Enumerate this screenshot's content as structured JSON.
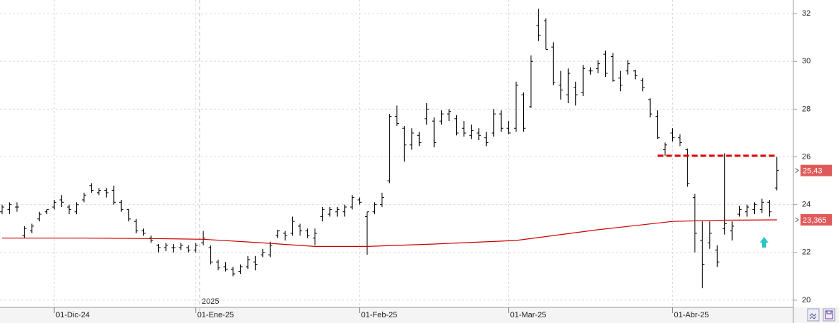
{
  "chart_data": {
    "type": "ohlc",
    "categories": [
      null,
      null,
      null,
      null,
      null,
      null,
      null,
      "01-Dic-24",
      null,
      null,
      null,
      null,
      null,
      null,
      null,
      null,
      null,
      null,
      null,
      null,
      null,
      null,
      null,
      null,
      null,
      null,
      "01-Ene-25",
      null,
      null,
      null,
      null,
      null,
      null,
      null,
      null,
      null,
      null,
      null,
      null,
      null,
      null,
      null,
      null,
      null,
      null,
      null,
      null,
      null,
      "01-Feb-25",
      null,
      null,
      null,
      null,
      null,
      null,
      null,
      null,
      null,
      null,
      null,
      null,
      null,
      null,
      null,
      null,
      null,
      null,
      null,
      "01-Mar-25",
      null,
      null,
      null,
      null,
      null,
      null,
      null,
      null,
      null,
      null,
      null,
      null,
      null,
      null,
      null,
      null,
      null,
      null,
      null,
      null,
      null,
      "01-Abr-25",
      null,
      null,
      null,
      null,
      null,
      null,
      null,
      null,
      null,
      null,
      null,
      null,
      null,
      null
    ],
    "year_label": "2025",
    "color": "#000000",
    "open": [
      23.7,
      23.8,
      23.9,
      22.7,
      22.9,
      23.4,
      23.7,
      23.9,
      24.2,
      23.9,
      23.7,
      24.2,
      24.8,
      24.5,
      24.6,
      24.6,
      24.1,
      23.8,
      23.3,
      22.9,
      22.6,
      22.3,
      22.2,
      22.2,
      22.2,
      22.2,
      22.1,
      22.4,
      22.2,
      21.6,
      21.4,
      21.3,
      21.2,
      21.4,
      21.6,
      21.9,
      21.9,
      22.7,
      22.8,
      22.8,
      23.1,
      22.9,
      22.6,
      23.5,
      23.6,
      23.7,
      23.7,
      23.9,
      24.2,
      23.5,
      23.7,
      24.0,
      25.0,
      27.7,
      27.2,
      26.5,
      26.9,
      27.6,
      27.5,
      27.5,
      27.8,
      27.6,
      27.2,
      26.9,
      27.0,
      26.8,
      27.0,
      27.8,
      27.2,
      27.2,
      28.6,
      28.1,
      31.5,
      31.7,
      30.6,
      29.0,
      28.6,
      28.9,
      28.7,
      29.6,
      29.7,
      30.3,
      30.2,
      29.3,
      29.6,
      29.6,
      29.2,
      28.4,
      27.7,
      26.3,
      27.0,
      26.8,
      26.3,
      24.3,
      22.5,
      22.4,
      22.1,
      23.0,
      22.9,
      23.6,
      23.7,
      23.8,
      23.8,
      24.1,
      24.7
    ],
    "high": [
      24.0,
      24.1,
      24.1,
      23.1,
      23.2,
      23.7,
      23.8,
      24.2,
      24.4,
      24.0,
      24.1,
      24.5,
      24.9,
      24.7,
      24.7,
      24.8,
      24.2,
      23.8,
      23.4,
      23.0,
      22.7,
      22.35,
      22.4,
      22.35,
      22.4,
      22.3,
      22.4,
      22.9,
      22.3,
      21.7,
      21.6,
      21.4,
      21.5,
      21.85,
      21.85,
      22.15,
      22.45,
      22.95,
      22.9,
      23.5,
      23.2,
      23.0,
      23.0,
      23.9,
      23.9,
      23.9,
      24.0,
      24.4,
      24.3,
      23.7,
      24.1,
      24.5,
      27.8,
      28.15,
      27.3,
      27.2,
      27.05,
      28.25,
      27.65,
      27.95,
      28.0,
      27.75,
      27.5,
      27.35,
      27.2,
      27.05,
      28.0,
      27.95,
      27.5,
      29.15,
      28.7,
      30.25,
      32.2,
      31.8,
      30.8,
      29.6,
      29.7,
      29.15,
      29.85,
      29.75,
      30.05,
      30.45,
      30.35,
      29.6,
      30.05,
      29.65,
      29.3,
      28.45,
      27.95,
      26.6,
      27.2,
      26.95,
      26.35,
      24.45,
      23.3,
      23.3,
      22.3,
      26.15,
      23.3,
      23.95,
      24.0,
      24.1,
      24.25,
      24.2,
      26.0
    ],
    "low": [
      23.6,
      23.6,
      23.7,
      22.6,
      22.8,
      23.3,
      23.6,
      23.8,
      23.9,
      23.6,
      23.6,
      24.1,
      24.5,
      24.4,
      24.3,
      24.0,
      23.7,
      23.3,
      22.8,
      22.7,
      22.4,
      22.0,
      22.05,
      22.0,
      22.1,
      22.0,
      22.0,
      22.3,
      21.5,
      21.25,
      21.2,
      21.0,
      21.1,
      21.3,
      21.25,
      21.8,
      21.8,
      22.6,
      22.5,
      22.7,
      22.7,
      22.6,
      22.3,
      23.3,
      23.5,
      23.5,
      23.5,
      23.8,
      24.0,
      21.9,
      23.6,
      23.9,
      24.9,
      27.3,
      25.8,
      26.3,
      26.45,
      27.35,
      26.4,
      27.35,
      27.5,
      26.9,
      26.85,
      26.75,
      26.7,
      26.45,
      26.85,
      27.05,
      26.95,
      27.05,
      27.05,
      28.05,
      30.85,
      30.5,
      29.0,
      28.4,
      28.25,
      28.15,
      28.55,
      29.45,
      29.5,
      29.35,
      29.15,
      28.75,
      29.45,
      29.25,
      28.75,
      27.65,
      26.75,
      26.05,
      26.65,
      26.45,
      24.75,
      22.0,
      20.5,
      22.15,
      21.4,
      22.75,
      22.5,
      23.5,
      23.5,
      23.6,
      23.65,
      23.5,
      24.6
    ],
    "close": [
      23.9,
      24.0,
      23.9,
      23.0,
      23.1,
      23.6,
      23.8,
      24.1,
      24.1,
      23.8,
      24.0,
      24.4,
      24.6,
      24.6,
      24.5,
      24.1,
      23.8,
      23.4,
      22.9,
      22.8,
      22.5,
      22.2,
      22.3,
      22.2,
      22.3,
      22.1,
      22.3,
      22.6,
      21.6,
      21.35,
      21.3,
      21.1,
      21.4,
      21.7,
      21.5,
      22.0,
      22.3,
      22.9,
      22.7,
      23.3,
      22.9,
      22.7,
      22.8,
      23.8,
      23.8,
      23.8,
      23.9,
      24.3,
      24.1,
      23.7,
      24.0,
      24.3,
      27.7,
      27.4,
      26.5,
      27.0,
      26.6,
      28.0,
      26.6,
      27.8,
      27.9,
      27.0,
      27.0,
      27.1,
      26.9,
      26.6,
      27.8,
      27.2,
      27.0,
      29.0,
      27.2,
      30.0,
      31.1,
      30.5,
      29.1,
      28.8,
      29.5,
      28.6,
      29.7,
      29.6,
      29.9,
      29.5,
      29.2,
      29.0,
      29.9,
      29.4,
      28.9,
      27.8,
      26.8,
      26.5,
      26.8,
      26.6,
      24.9,
      22.8,
      21.5,
      22.8,
      21.6,
      23.2,
      23.1,
      23.8,
      23.9,
      24.0,
      24.1,
      23.7,
      25.43
    ],
    "close_label": "25,43",
    "label_color": "#e05a5a",
    "ma": {
      "color": "#cc0000",
      "x": [
        0,
        10,
        20,
        27,
        35,
        42,
        49,
        58,
        69,
        80,
        90,
        97,
        104
      ],
      "values": [
        22.6,
        22.6,
        22.58,
        22.55,
        22.4,
        22.25,
        22.25,
        22.35,
        22.5,
        22.95,
        23.3,
        23.35,
        23.365
      ],
      "last_label": "23,365"
    },
    "hline": {
      "value": 26.05,
      "from": 88,
      "to": 104,
      "color": "#e00000"
    },
    "ylim": [
      19.7,
      32.57
    ],
    "yticks": [
      20,
      22,
      24,
      26,
      28,
      30,
      32
    ],
    "grid": true
  }
}
